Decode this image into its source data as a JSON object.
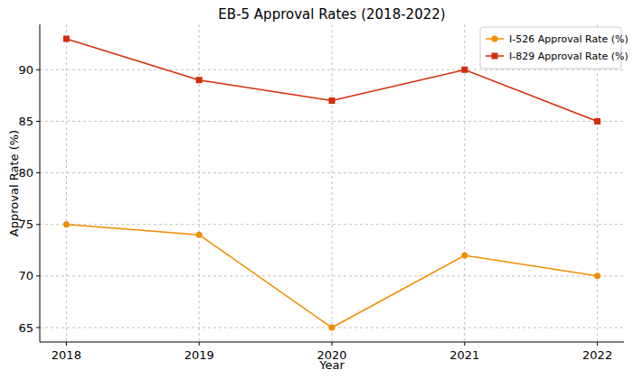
{
  "chart_data": {
    "type": "line",
    "title": "EB-5 Approval Rates (2018-2022)",
    "x_label": "Year",
    "y_label": "Approval Rate (%)",
    "x": [
      2018,
      2019,
      2020,
      2021,
      2022
    ],
    "series": [
      {
        "name": "I-526 Approval Rate (%)",
        "color": "#f28c00",
        "marker": "circle",
        "values": [
          75,
          74,
          65,
          72,
          70
        ]
      },
      {
        "name": "I-829 Approval Rate (%)",
        "color": "#d62c0a",
        "marker": "square",
        "values": [
          93,
          89,
          87,
          90,
          85
        ]
      }
    ],
    "xlim": [
      2017.8,
      2022.2
    ],
    "xticks": [
      2018,
      2019,
      2020,
      2021,
      2022
    ],
    "ylim": [
      63.6,
      94.4
    ],
    "yticks": [
      65,
      70,
      75,
      80,
      85,
      90
    ],
    "grid": true,
    "legend": "upper right"
  }
}
